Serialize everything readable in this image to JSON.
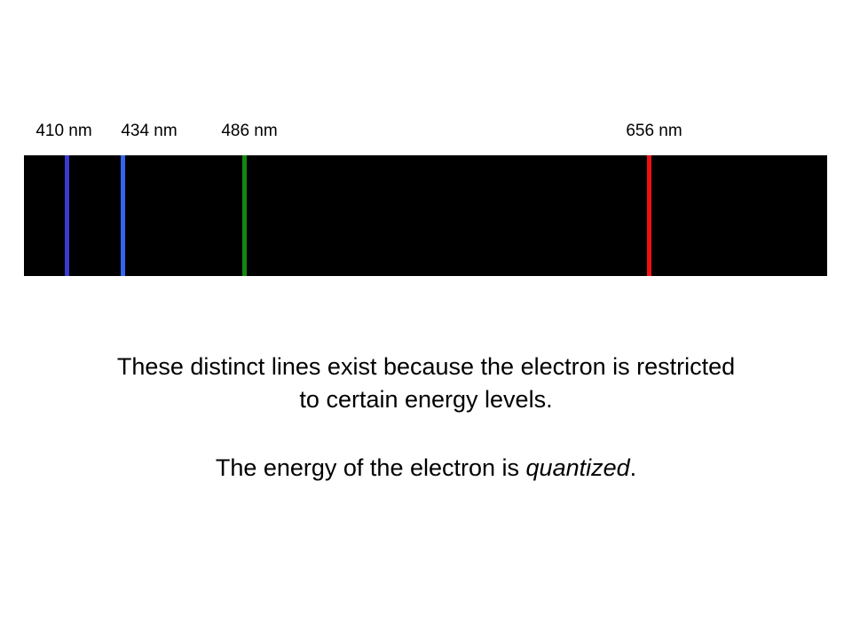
{
  "spectrum": {
    "lines": [
      {
        "label": "410 nm",
        "color": "#3a3ad0"
      },
      {
        "label": "434 nm",
        "color": "#3366ee"
      },
      {
        "label": "486 nm",
        "color": "#118811"
      },
      {
        "label": "656 nm",
        "color": "#ee1111"
      }
    ]
  },
  "body": [
    {
      "text": "These distinct lines exist because the electron is restricted to certain energy levels."
    },
    {
      "parts": [
        "The energy of the electron is ",
        "quantized",
        "."
      ]
    }
  ]
}
